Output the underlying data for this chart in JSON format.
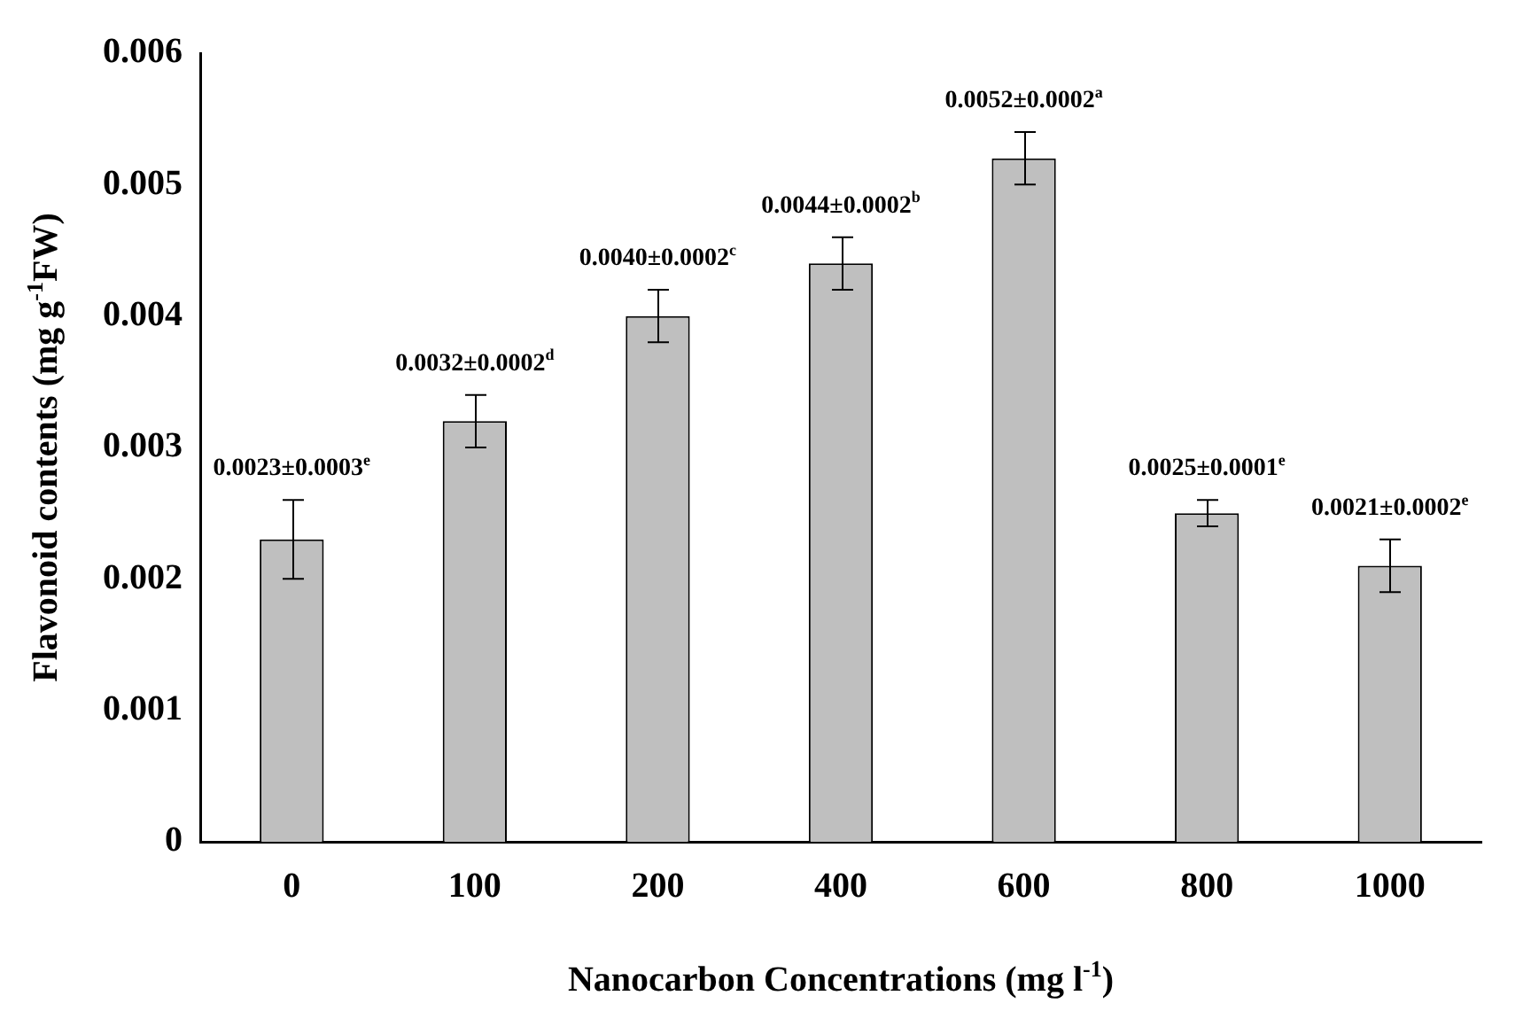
{
  "chart_data": {
    "type": "bar",
    "xlabel": "Nanocarbon Concentrations (mg l$^{-1}$)",
    "ylabel": "Flavonoid contents (mg g$^{-1}$FW)",
    "categories": [
      "0",
      "100",
      "200",
      "400",
      "600",
      "800",
      "1000"
    ],
    "values": [
      0.0023,
      0.0032,
      0.004,
      0.0044,
      0.0052,
      0.0025,
      0.0021
    ],
    "errors": [
      0.0003,
      0.0002,
      0.0002,
      0.0002,
      0.0002,
      0.0001,
      0.0002
    ],
    "value_labels": [
      "0.0023±0.0003$^{e}$",
      "0.0032±0.0002$^{d}$",
      "0.0040±0.0002$^{c}$",
      "0.0044±0.0002$^{b}$",
      "0.0052±0.0002$^{a}$",
      "0.0025±0.0001$^{e}$",
      "0.0021±0.0002$^{e}$"
    ],
    "color": "#bfbfbf",
    "ylim": [
      0,
      0.006
    ],
    "yticks": [
      0,
      0.001,
      0.002,
      0.003,
      0.004,
      0.005,
      0.006
    ],
    "grid": false,
    "legend": false
  }
}
